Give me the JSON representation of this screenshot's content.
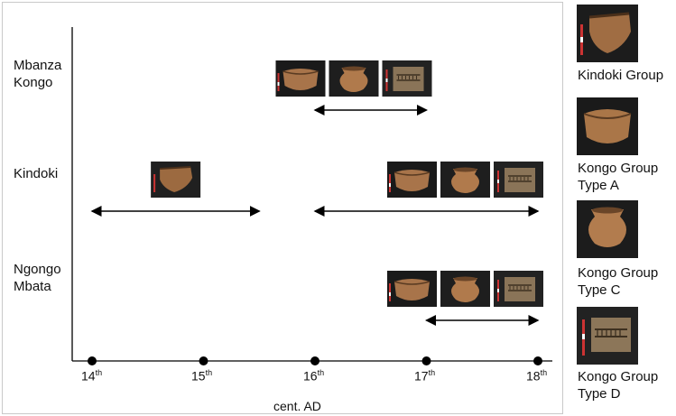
{
  "sites": [
    {
      "label_line1": "Mbanza",
      "label_line2": "Kongo"
    },
    {
      "label_line1": "Kindoki",
      "label_line2": ""
    },
    {
      "label_line1": "Ngongo",
      "label_line2": "Mbata"
    }
  ],
  "axis": {
    "title": "cent. AD",
    "ticks": [
      {
        "num": "14",
        "suffix": "th"
      },
      {
        "num": "15",
        "suffix": "th"
      },
      {
        "num": "16",
        "suffix": "th"
      },
      {
        "num": "17",
        "suffix": "th"
      },
      {
        "num": "18",
        "suffix": "th"
      }
    ]
  },
  "legend": [
    {
      "line1": "Kindoki Group",
      "line2": "",
      "type": "kindoki"
    },
    {
      "line1": "Kongo Group",
      "line2": "Type A",
      "type": "A"
    },
    {
      "line1": "Kongo Group",
      "line2": "Type C",
      "type": "C"
    },
    {
      "line1": "Kongo Group",
      "line2": "Type D",
      "type": "D"
    }
  ],
  "ranges": [
    {
      "site": "Mbanza Kongo",
      "from": 16,
      "to": 17,
      "types": [
        "A",
        "C",
        "D"
      ]
    },
    {
      "site": "Kindoki",
      "from": 14,
      "to": 15.5,
      "types": [
        "kindoki"
      ]
    },
    {
      "site": "Kindoki",
      "from": 16,
      "to": 18,
      "types": [
        "A",
        "C",
        "D"
      ]
    },
    {
      "site": "Ngongo Mbata",
      "from": 17,
      "to": 18,
      "types": [
        "A",
        "C",
        "D"
      ]
    }
  ]
}
